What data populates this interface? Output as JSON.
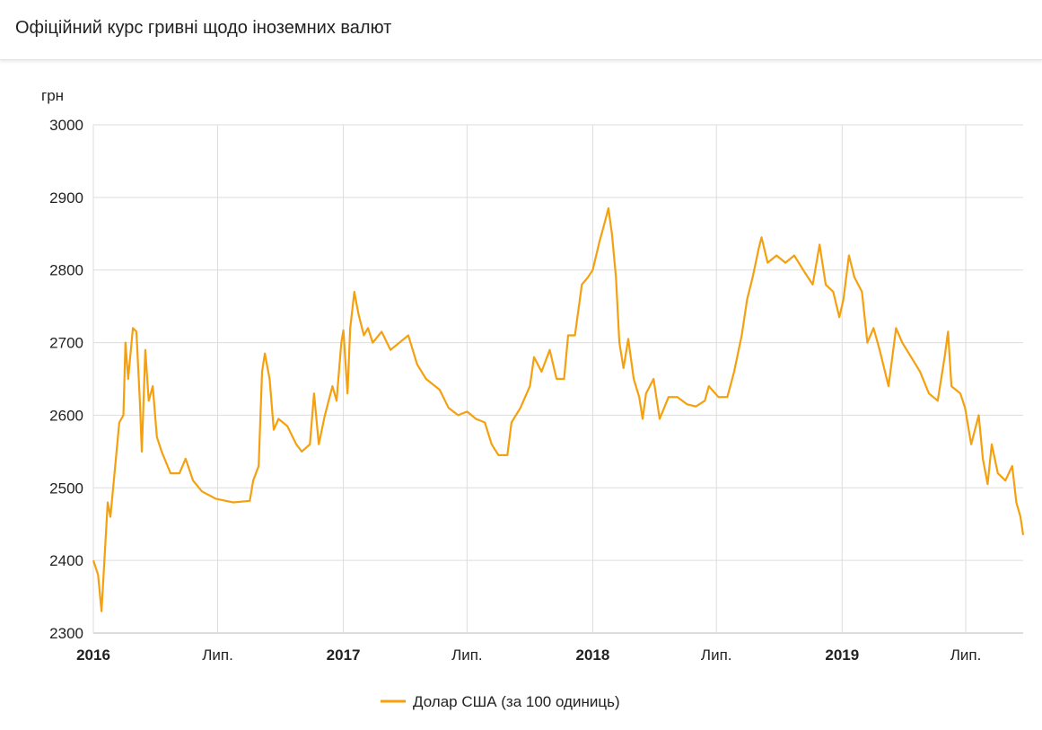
{
  "header": {
    "title": "Офіційний курс гривні щодо іноземних валют"
  },
  "chart_data": {
    "type": "line",
    "title": "",
    "ylabel": "грн",
    "xlabel": "",
    "ylim": [
      2300,
      3000
    ],
    "yticks": [
      2300,
      2400,
      2500,
      2600,
      2700,
      2800,
      2900,
      3000
    ],
    "xlim": [
      "2016-01-01",
      "2019-09-23"
    ],
    "xticks": [
      {
        "date": "2016-01-01",
        "label": "2016",
        "bold": true
      },
      {
        "date": "2016-07-01",
        "label": "Лип.",
        "bold": false
      },
      {
        "date": "2017-01-01",
        "label": "2017",
        "bold": true
      },
      {
        "date": "2017-07-01",
        "label": "Лип.",
        "bold": false
      },
      {
        "date": "2018-01-01",
        "label": "2018",
        "bold": true
      },
      {
        "date": "2018-07-01",
        "label": "Лип.",
        "bold": false
      },
      {
        "date": "2019-01-01",
        "label": "2019",
        "bold": true
      },
      {
        "date": "2019-07-01",
        "label": "Лип.",
        "bold": false
      }
    ],
    "grid": true,
    "legend_position": "bottom",
    "series": [
      {
        "name": "Долар США (за 100 одиниць)",
        "color": "#f5a00f",
        "points": [
          [
            "2016-01-01",
            2400
          ],
          [
            "2016-01-08",
            2380
          ],
          [
            "2016-01-13",
            2330
          ],
          [
            "2016-01-22",
            2480
          ],
          [
            "2016-01-26",
            2460
          ],
          [
            "2016-02-01",
            2520
          ],
          [
            "2016-02-08",
            2590
          ],
          [
            "2016-02-14",
            2600
          ],
          [
            "2016-02-17",
            2700
          ],
          [
            "2016-02-21",
            2650
          ],
          [
            "2016-02-28",
            2720
          ],
          [
            "2016-03-04",
            2715
          ],
          [
            "2016-03-09",
            2620
          ],
          [
            "2016-03-12",
            2550
          ],
          [
            "2016-03-17",
            2690
          ],
          [
            "2016-03-22",
            2620
          ],
          [
            "2016-03-28",
            2640
          ],
          [
            "2016-04-03",
            2570
          ],
          [
            "2016-04-10",
            2550
          ],
          [
            "2016-04-23",
            2520
          ],
          [
            "2016-05-06",
            2520
          ],
          [
            "2016-05-15",
            2540
          ],
          [
            "2016-05-26",
            2510
          ],
          [
            "2016-06-08",
            2495
          ],
          [
            "2016-06-28",
            2485
          ],
          [
            "2016-07-24",
            2480
          ],
          [
            "2016-08-17",
            2482
          ],
          [
            "2016-08-22",
            2510
          ],
          [
            "2016-08-30",
            2530
          ],
          [
            "2016-09-04",
            2660
          ],
          [
            "2016-09-08",
            2685
          ],
          [
            "2016-09-15",
            2650
          ],
          [
            "2016-09-21",
            2580
          ],
          [
            "2016-09-28",
            2595
          ],
          [
            "2016-10-11",
            2585
          ],
          [
            "2016-10-24",
            2560
          ],
          [
            "2016-11-01",
            2550
          ],
          [
            "2016-11-13",
            2560
          ],
          [
            "2016-11-19",
            2630
          ],
          [
            "2016-11-26",
            2560
          ],
          [
            "2016-12-05",
            2600
          ],
          [
            "2016-12-16",
            2640
          ],
          [
            "2016-12-22",
            2620
          ],
          [
            "2016-12-29",
            2700
          ],
          [
            "2017-01-01",
            2717
          ],
          [
            "2017-01-07",
            2630
          ],
          [
            "2017-01-11",
            2720
          ],
          [
            "2017-01-17",
            2770
          ],
          [
            "2017-01-23",
            2740
          ],
          [
            "2017-01-31",
            2710
          ],
          [
            "2017-02-06",
            2720
          ],
          [
            "2017-02-13",
            2700
          ],
          [
            "2017-02-26",
            2715
          ],
          [
            "2017-03-11",
            2690
          ],
          [
            "2017-03-24",
            2700
          ],
          [
            "2017-04-06",
            2710
          ],
          [
            "2017-04-19",
            2670
          ],
          [
            "2017-05-02",
            2650
          ],
          [
            "2017-05-22",
            2635
          ],
          [
            "2017-06-04",
            2610
          ],
          [
            "2017-06-18",
            2600
          ],
          [
            "2017-07-01",
            2605
          ],
          [
            "2017-07-14",
            2595
          ],
          [
            "2017-07-27",
            2590
          ],
          [
            "2017-08-06",
            2560
          ],
          [
            "2017-08-16",
            2545
          ],
          [
            "2017-08-29",
            2545
          ],
          [
            "2017-09-04",
            2590
          ],
          [
            "2017-09-17",
            2610
          ],
          [
            "2017-10-01",
            2640
          ],
          [
            "2017-10-07",
            2680
          ],
          [
            "2017-10-18",
            2660
          ],
          [
            "2017-10-30",
            2690
          ],
          [
            "2017-11-09",
            2650
          ],
          [
            "2017-11-20",
            2650
          ],
          [
            "2017-11-26",
            2710
          ],
          [
            "2017-12-06",
            2710
          ],
          [
            "2017-12-16",
            2780
          ],
          [
            "2017-12-25",
            2790
          ],
          [
            "2018-01-01",
            2800
          ],
          [
            "2018-01-11",
            2840
          ],
          [
            "2018-01-17",
            2860
          ],
          [
            "2018-01-24",
            2885
          ],
          [
            "2018-01-29",
            2850
          ],
          [
            "2018-02-04",
            2790
          ],
          [
            "2018-02-09",
            2700
          ],
          [
            "2018-02-15",
            2665
          ],
          [
            "2018-02-22",
            2705
          ],
          [
            "2018-03-02",
            2650
          ],
          [
            "2018-03-10",
            2625
          ],
          [
            "2018-03-15",
            2595
          ],
          [
            "2018-03-20",
            2630
          ],
          [
            "2018-03-31",
            2650
          ],
          [
            "2018-04-09",
            2595
          ],
          [
            "2018-04-22",
            2625
          ],
          [
            "2018-05-05",
            2625
          ],
          [
            "2018-05-19",
            2615
          ],
          [
            "2018-06-01",
            2612
          ],
          [
            "2018-06-14",
            2620
          ],
          [
            "2018-06-20",
            2640
          ],
          [
            "2018-07-04",
            2625
          ],
          [
            "2018-07-17",
            2625
          ],
          [
            "2018-07-27",
            2660
          ],
          [
            "2018-08-07",
            2710
          ],
          [
            "2018-08-15",
            2760
          ],
          [
            "2018-08-23",
            2790
          ],
          [
            "2018-09-01",
            2830
          ],
          [
            "2018-09-05",
            2845
          ],
          [
            "2018-09-14",
            2810
          ],
          [
            "2018-09-27",
            2820
          ],
          [
            "2018-10-10",
            2810
          ],
          [
            "2018-10-23",
            2820
          ],
          [
            "2018-11-05",
            2800
          ],
          [
            "2018-11-19",
            2780
          ],
          [
            "2018-11-29",
            2835
          ],
          [
            "2018-12-08",
            2780
          ],
          [
            "2018-12-19",
            2770
          ],
          [
            "2018-12-28",
            2735
          ],
          [
            "2019-01-03",
            2760
          ],
          [
            "2019-01-11",
            2820
          ],
          [
            "2019-01-19",
            2790
          ],
          [
            "2019-01-30",
            2770
          ],
          [
            "2019-02-07",
            2700
          ],
          [
            "2019-02-16",
            2720
          ],
          [
            "2019-02-25",
            2690
          ],
          [
            "2019-03-10",
            2640
          ],
          [
            "2019-03-21",
            2720
          ],
          [
            "2019-03-30",
            2700
          ],
          [
            "2019-04-12",
            2680
          ],
          [
            "2019-04-25",
            2660
          ],
          [
            "2019-05-08",
            2630
          ],
          [
            "2019-05-21",
            2620
          ],
          [
            "2019-05-31",
            2680
          ],
          [
            "2019-06-05",
            2715
          ],
          [
            "2019-06-10",
            2640
          ],
          [
            "2019-06-23",
            2630
          ],
          [
            "2019-06-30",
            2610
          ],
          [
            "2019-07-09",
            2560
          ],
          [
            "2019-07-20",
            2600
          ],
          [
            "2019-07-26",
            2540
          ],
          [
            "2019-08-02",
            2505
          ],
          [
            "2019-08-08",
            2560
          ],
          [
            "2019-08-17",
            2520
          ],
          [
            "2019-08-28",
            2510
          ],
          [
            "2019-09-07",
            2530
          ],
          [
            "2019-09-13",
            2480
          ],
          [
            "2019-09-19",
            2460
          ],
          [
            "2019-09-23",
            2435
          ]
        ]
      }
    ]
  }
}
